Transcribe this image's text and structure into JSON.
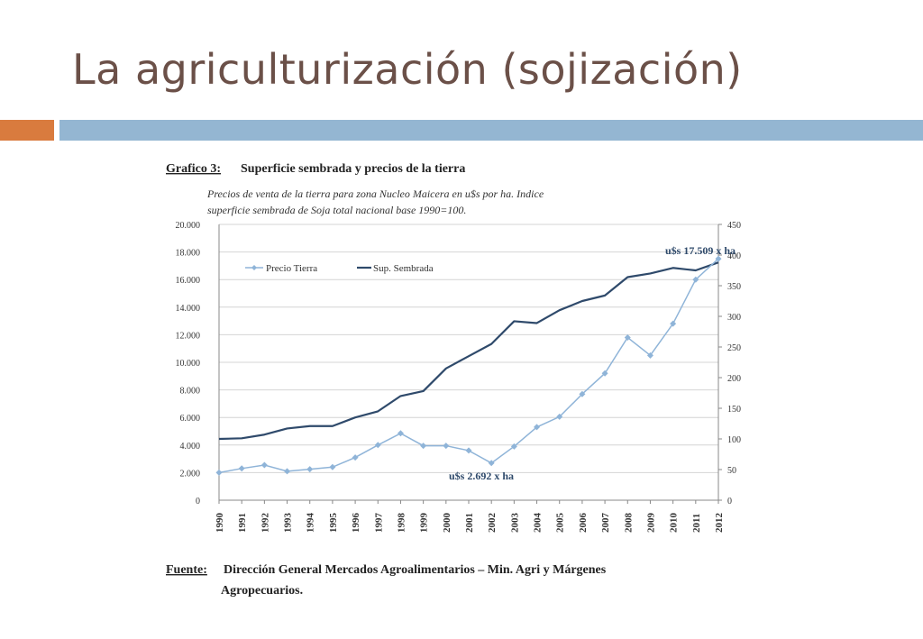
{
  "slide": {
    "title": "La agriculturización (sojización)"
  },
  "colors": {
    "title": "#6b5048",
    "accent_orange": "#d97b3e",
    "accent_blue": "#94b6d2",
    "precio_line": "#8fb4d8",
    "sup_line": "#2f4a6b"
  },
  "chart_data": {
    "type": "line",
    "figure_label": "Grafico 3:",
    "title": "Superficie sembrada y precios de la tierra",
    "subtitle_lines": [
      "Precios de venta de la tierra para zona Nucleo Maicera en u$s por ha. Indice",
      "superficie sembrada de Soja total nacional base 1990=100."
    ],
    "x": [
      "1990",
      "1991",
      "1992",
      "1993",
      "1994",
      "1995",
      "1996",
      "1997",
      "1998",
      "1999",
      "2000",
      "2001",
      "2002",
      "2003",
      "2004",
      "2005",
      "2006",
      "2007",
      "2008",
      "2009",
      "2010",
      "2011",
      "2012"
    ],
    "y_left": {
      "range": [
        0,
        20000
      ],
      "ticks": [
        "0",
        "2.000",
        "4.000",
        "6.000",
        "8.000",
        "10.000",
        "12.000",
        "14.000",
        "16.000",
        "18.000",
        "20.000"
      ]
    },
    "y_right": {
      "range": [
        0,
        450
      ],
      "ticks": [
        "0",
        "50",
        "100",
        "150",
        "200",
        "250",
        "300",
        "350",
        "400",
        "450"
      ]
    },
    "series": [
      {
        "name": "Precio Tierra",
        "axis": "left",
        "marker": "diamond",
        "values": [
          2000,
          2300,
          2550,
          2100,
          2250,
          2400,
          3100,
          4000,
          4850,
          3950,
          3950,
          3600,
          2692,
          3900,
          5300,
          6050,
          7700,
          9200,
          11800,
          10500,
          12800,
          16000,
          17509
        ]
      },
      {
        "name": "Sup. Sembrada",
        "axis": "right",
        "marker": "none",
        "values": [
          100,
          101,
          107,
          117,
          121,
          121,
          135,
          145,
          170,
          178,
          215,
          235,
          255,
          292,
          289,
          310,
          325,
          334,
          364,
          370,
          379,
          375,
          388
        ]
      }
    ],
    "annotations": [
      {
        "text": "u$s 17.509 x ha",
        "year": "2012"
      },
      {
        "text": "u$s 2.692 x ha",
        "year": "2002"
      }
    ],
    "legend_position": "top-left",
    "grid": true,
    "source_label": "Fuente:",
    "source_lines": [
      "Dirección General Mercados Agroalimentarios – Min. Agri y Márgenes",
      "Agropecuarios."
    ]
  }
}
